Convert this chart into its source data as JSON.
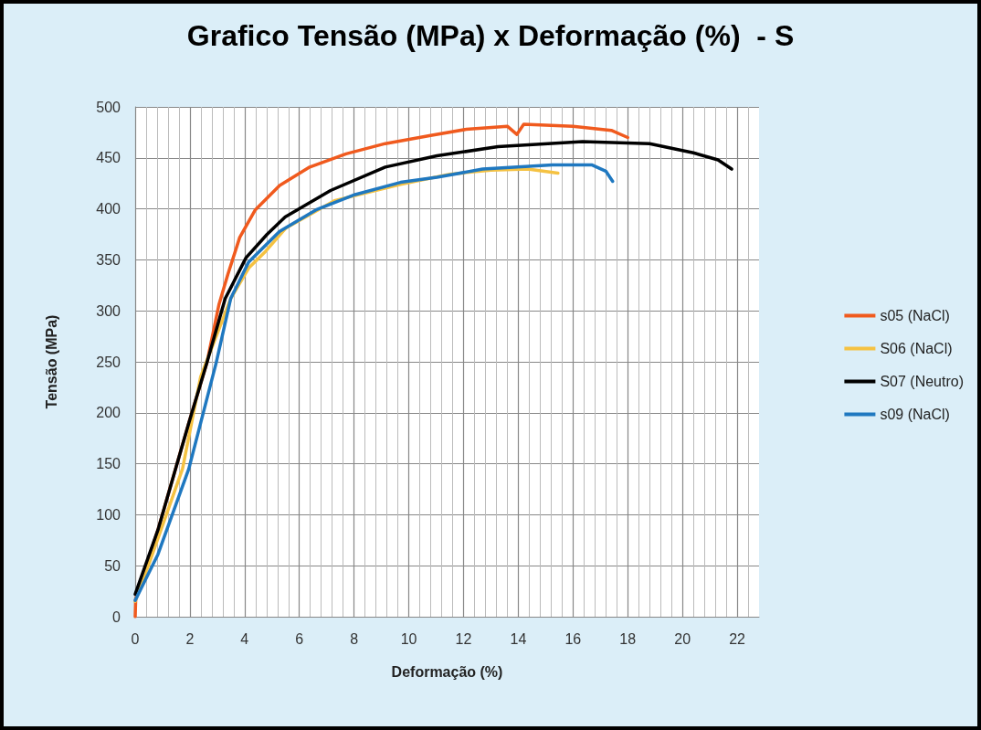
{
  "chart_data": {
    "type": "line",
    "title": "Grafico Tensão (MPa) x Deformação (%)  - S",
    "xlabel": "Deformação (%)",
    "ylabel": "Tensão (MPa)",
    "xlim": [
      0,
      22.8
    ],
    "xticks": [
      0,
      2,
      4,
      6,
      8,
      10,
      12,
      14,
      16,
      18,
      20,
      22
    ],
    "ylim": [
      0,
      500
    ],
    "yticks": [
      0,
      50,
      100,
      150,
      200,
      250,
      300,
      350,
      400,
      450,
      500
    ],
    "grid": true,
    "legend": "right",
    "marker": "none",
    "line_style": "solid",
    "series": [
      {
        "name": "s05 (NaCl)",
        "color": "#f05a1e",
        "x": [
          0,
          0.02,
          0.83,
          1.96,
          2.62,
          3.06,
          3.39,
          3.82,
          4.39,
          5.28,
          6.38,
          7.71,
          9.14,
          10.8,
          12.1,
          13.6,
          13.95,
          14.2,
          16,
          17.4,
          18
        ],
        "values": [
          0,
          18,
          85,
          190,
          249,
          306,
          336,
          372,
          399,
          423,
          441,
          454,
          464,
          472,
          478,
          481,
          473,
          483,
          481,
          477,
          470
        ]
      },
      {
        "name": "S06 (NaCl)",
        "color": "#f5c242",
        "x": [
          0,
          0.56,
          1.73,
          2.39,
          3.49,
          4.15,
          4.72,
          5.5,
          7.28,
          9.7,
          11.5,
          13,
          14.35,
          15.45
        ],
        "values": [
          15,
          56,
          145,
          235,
          312,
          342,
          357,
          381,
          408,
          424,
          434,
          438,
          439,
          435
        ]
      },
      {
        "name": "S07 (Neutro)",
        "color": "#000000",
        "x": [
          0,
          0.83,
          1.96,
          2.62,
          3.29,
          4.05,
          4.82,
          5.48,
          7.14,
          9.14,
          11.03,
          13.26,
          16.35,
          18.8,
          20.4,
          21.3,
          21.8
        ],
        "values": [
          22,
          85,
          190,
          249,
          312,
          352,
          375,
          392,
          418,
          441,
          452,
          461,
          466,
          464,
          455,
          448,
          439
        ]
      },
      {
        "name": "s09 (NaCl)",
        "color": "#1f78c0",
        "x": [
          0,
          0.83,
          1.96,
          2.96,
          3.49,
          4.15,
          5.28,
          6.61,
          8.04,
          9.7,
          11.03,
          12.7,
          15.25,
          16.7,
          17.2,
          17.45
        ],
        "values": [
          16,
          61,
          145,
          249,
          312,
          348,
          378,
          399,
          414,
          426,
          431,
          439,
          443,
          443,
          437,
          427
        ]
      }
    ]
  }
}
